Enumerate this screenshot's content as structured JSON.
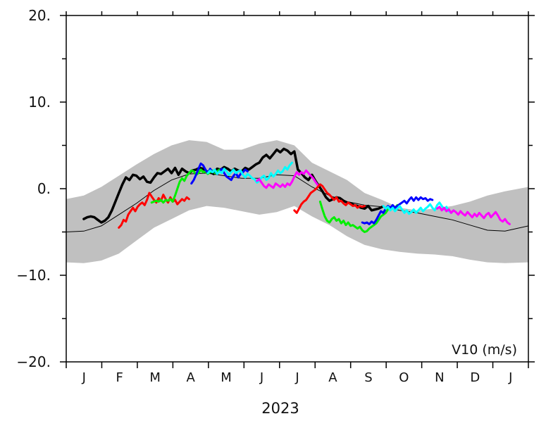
{
  "chart_data": {
    "type": "line",
    "year_label": "2023",
    "variable_label": "V10 (m/s)",
    "ylim": [
      -20,
      20
    ],
    "y_ticks": [
      {
        "value": 20,
        "label": "20."
      },
      {
        "value": 10,
        "label": "10."
      },
      {
        "value": 0,
        "label": "0."
      },
      {
        "value": -10,
        "label": "−10."
      },
      {
        "value": -20,
        "label": "−20."
      }
    ],
    "x_range_days": [
      0,
      395
    ],
    "month_labels": [
      "J",
      "F",
      "M",
      "A",
      "M",
      "J",
      "J",
      "A",
      "S",
      "O",
      "N",
      "D",
      "J"
    ],
    "climatology_band": {
      "color": "#c0c0c0",
      "days": [
        0,
        15,
        30,
        45,
        60,
        75,
        90,
        105,
        120,
        135,
        150,
        165,
        180,
        195,
        210,
        225,
        240,
        255,
        270,
        285,
        300,
        315,
        330,
        345,
        360,
        375,
        395
      ],
      "upper": [
        -1.2,
        -0.8,
        0.2,
        1.5,
        2.8,
        4.0,
        5.0,
        5.6,
        5.4,
        4.5,
        4.5,
        5.2,
        5.6,
        5.0,
        3.0,
        2.0,
        1.0,
        -0.5,
        -1.3,
        -2.2,
        -2.5,
        -2.3,
        -2.0,
        -1.5,
        -0.8,
        -0.3,
        0.2
      ],
      "lower": [
        -8.5,
        -8.6,
        -8.3,
        -7.5,
        -6.0,
        -4.5,
        -3.5,
        -2.5,
        -2.0,
        -2.2,
        -2.6,
        -3.0,
        -2.7,
        -2.0,
        -3.2,
        -4.2,
        -5.5,
        -6.5,
        -7.0,
        -7.3,
        -7.5,
        -7.6,
        -7.8,
        -8.2,
        -8.5,
        -8.6,
        -8.5
      ]
    },
    "climatology_mean": {
      "name": "mean",
      "color": "#000000",
      "days": [
        0,
        15,
        30,
        45,
        60,
        75,
        90,
        105,
        120,
        135,
        150,
        165,
        180,
        195,
        210,
        225,
        240,
        255,
        270,
        285,
        300,
        315,
        330,
        345,
        360,
        375,
        395
      ],
      "values": [
        -5.0,
        -4.9,
        -4.3,
        -3.0,
        -1.7,
        -0.2,
        1.0,
        1.7,
        1.8,
        1.5,
        1.2,
        1.2,
        1.6,
        1.5,
        0.2,
        -0.8,
        -1.5,
        -1.9,
        -2.1,
        -2.5,
        -2.8,
        -3.2,
        -3.6,
        -4.2,
        -4.8,
        -4.9,
        -4.3
      ]
    },
    "series": [
      {
        "name": "black",
        "color": "#000000",
        "days": [
          15,
          18,
          21,
          24,
          27,
          30,
          33,
          36,
          39,
          42,
          45,
          48,
          51,
          54,
          57,
          60,
          63,
          66,
          69,
          72,
          75,
          78,
          81,
          84,
          87,
          90,
          93,
          96,
          99,
          102,
          105,
          108,
          111,
          114,
          117,
          120,
          123,
          126,
          129,
          132,
          135,
          138,
          141,
          144,
          147,
          150,
          153,
          156,
          159,
          162,
          165,
          168,
          171,
          174,
          177,
          180,
          183,
          186,
          189,
          192,
          195,
          198,
          201,
          204,
          207,
          210,
          213,
          216,
          219,
          222,
          225,
          228,
          231,
          234,
          237,
          240,
          243,
          246,
          249,
          252,
          255,
          258,
          261,
          264,
          267,
          270
        ],
        "values": [
          -3.5,
          -3.3,
          -3.2,
          -3.3,
          -3.6,
          -3.9,
          -3.7,
          -3.3,
          -2.5,
          -1.5,
          -0.5,
          0.5,
          1.3,
          1.0,
          1.6,
          1.5,
          1.1,
          1.4,
          0.8,
          0.7,
          1.3,
          1.8,
          1.7,
          2.0,
          2.3,
          1.8,
          2.4,
          1.6,
          2.3,
          2.0,
          1.8,
          2.1,
          2.2,
          2.4,
          2.3,
          2.0,
          1.9,
          1.7,
          2.3,
          2.2,
          2.5,
          2.3,
          2.0,
          2.3,
          2.1,
          2.0,
          2.4,
          2.2,
          2.5,
          2.8,
          3.0,
          3.6,
          3.9,
          3.5,
          4.0,
          4.5,
          4.2,
          4.6,
          4.4,
          4.0,
          4.3,
          2.2,
          1.8,
          1.3,
          1.0,
          1.6,
          0.9,
          0.3,
          -0.3,
          -1.0,
          -1.4,
          -1.2,
          -1.0,
          -1.1,
          -1.4,
          -1.6,
          -1.7,
          -1.9,
          -2.0,
          -2.2,
          -2.3,
          -2.0,
          -2.5,
          -2.4,
          -2.3,
          -2.1
        ]
      },
      {
        "name": "red1",
        "color": "#ff0000",
        "days": [
          45,
          47,
          49,
          51,
          53,
          55,
          57,
          59,
          61,
          63,
          65,
          67,
          69,
          71,
          73,
          75,
          77,
          79,
          81,
          83,
          85,
          87,
          89,
          91,
          93,
          95,
          97,
          99,
          101,
          103,
          105
        ],
        "values": [
          -4.5,
          -4.2,
          -3.6,
          -3.8,
          -3.0,
          -2.6,
          -2.2,
          -2.6,
          -2.1,
          -1.8,
          -1.6,
          -1.9,
          -1.3,
          -0.5,
          -0.9,
          -1.3,
          -1.6,
          -1.1,
          -1.4,
          -0.7,
          -1.2,
          -1.6,
          -1.0,
          -1.5,
          -1.3,
          -1.8,
          -1.5,
          -1.2,
          -1.4,
          -1.0,
          -1.2
        ]
      },
      {
        "name": "green1",
        "color": "#00ee00",
        "days": [
          73,
          75,
          77,
          79,
          81,
          83,
          85,
          87,
          89,
          91,
          93,
          95,
          97,
          99,
          101,
          103,
          105,
          107,
          109,
          111,
          113,
          115,
          117,
          119,
          121,
          123,
          125,
          127,
          129,
          131
        ],
        "values": [
          -1.6,
          -1.5,
          -1.4,
          -1.5,
          -1.3,
          -1.6,
          -1.3,
          -1.4,
          -1.2,
          -1.5,
          -0.8,
          0.0,
          0.8,
          1.2,
          0.9,
          1.5,
          1.8,
          2.1,
          2.0,
          1.6,
          1.8,
          2.2,
          1.9,
          2.0,
          1.7,
          1.9,
          2.1,
          1.8,
          2.0,
          2.2
        ]
      },
      {
        "name": "blue1",
        "color": "#0000ff",
        "days": [
          107,
          109,
          111,
          113,
          115,
          117,
          119,
          121,
          123,
          125,
          127,
          129,
          131,
          133,
          135,
          137,
          139,
          141,
          143,
          145,
          147,
          149,
          151,
          153,
          155
        ],
        "values": [
          0.6,
          1.0,
          1.6,
          2.3,
          2.9,
          2.7,
          2.2,
          1.8,
          2.3,
          1.9,
          2.1,
          1.7,
          2.0,
          2.3,
          1.8,
          1.4,
          1.2,
          1.0,
          1.5,
          1.8,
          1.3,
          1.7,
          1.9,
          2.2,
          2.0
        ]
      },
      {
        "name": "cyan1",
        "color": "#00ffff",
        "days": [
          121,
          123,
          125,
          127,
          129,
          131,
          133,
          135,
          137,
          139,
          141,
          143,
          145,
          147,
          149,
          151,
          153,
          155,
          157,
          159,
          161,
          163,
          165,
          167,
          169,
          171,
          173,
          175,
          177,
          179,
          181,
          183,
          185,
          187,
          189,
          191,
          193
        ],
        "values": [
          1.8,
          2.1,
          1.9,
          2.2,
          1.7,
          2.0,
          1.8,
          2.3,
          2.0,
          1.6,
          1.9,
          2.2,
          1.8,
          2.0,
          2.1,
          1.6,
          1.3,
          1.7,
          1.5,
          1.2,
          1.1,
          0.7,
          0.9,
          1.3,
          1.5,
          1.0,
          1.2,
          1.8,
          1.4,
          1.7,
          2.1,
          1.8,
          2.0,
          2.5,
          2.2,
          2.7,
          3.0
        ]
      },
      {
        "name": "magenta1",
        "color": "#ff00ff",
        "days": [
          163,
          165,
          167,
          169,
          171,
          173,
          175,
          177,
          179,
          181,
          183,
          185,
          187,
          189,
          191,
          193,
          195,
          197,
          199,
          201,
          203,
          205,
          207,
          209,
          211,
          213,
          215
        ],
        "values": [
          0.9,
          1.1,
          0.7,
          0.3,
          0.1,
          0.5,
          0.3,
          0.1,
          0.6,
          0.4,
          0.2,
          0.5,
          0.2,
          0.6,
          0.4,
          0.8,
          1.4,
          1.9,
          1.6,
          1.9,
          1.7,
          2.1,
          1.8,
          1.5,
          1.2,
          0.8,
          0.4
        ]
      },
      {
        "name": "red2",
        "color": "#ff0000",
        "days": [
          195,
          197,
          199,
          201,
          203,
          205,
          207,
          209,
          211,
          213,
          215,
          217,
          219,
          221,
          223,
          225,
          227,
          229,
          231,
          233,
          235,
          237,
          239,
          241,
          243,
          245,
          247,
          249,
          251,
          253,
          255
        ],
        "values": [
          -2.5,
          -2.8,
          -2.3,
          -1.8,
          -1.5,
          -1.3,
          -0.9,
          -0.5,
          -0.3,
          -0.1,
          0.2,
          0.5,
          0.3,
          -0.1,
          -0.5,
          -0.7,
          -1.0,
          -1.3,
          -1.0,
          -1.5,
          -1.4,
          -1.7,
          -1.9,
          -1.6,
          -1.8,
          -2.0,
          -1.9,
          -2.2,
          -2.0,
          -2.1,
          -2.0
        ]
      },
      {
        "name": "green2",
        "color": "#00ee00",
        "days": [
          217,
          219,
          221,
          223,
          225,
          227,
          229,
          231,
          233,
          235,
          237,
          239,
          241,
          243,
          245,
          247,
          249,
          251,
          253,
          255,
          257,
          259,
          261,
          263,
          265,
          267,
          269,
          271,
          273,
          275,
          277,
          279,
          281,
          283
        ],
        "values": [
          -1.5,
          -2.4,
          -3.2,
          -3.7,
          -3.9,
          -3.5,
          -3.3,
          -3.7,
          -3.5,
          -4.0,
          -3.7,
          -4.2,
          -3.9,
          -4.3,
          -4.2,
          -4.4,
          -4.6,
          -4.4,
          -4.8,
          -5.0,
          -4.9,
          -4.6,
          -4.4,
          -4.2,
          -4.0,
          -3.6,
          -3.2,
          -3.0,
          -2.8,
          -2.4,
          -2.2,
          -2.0,
          -2.2,
          -1.9
        ]
      },
      {
        "name": "blue2",
        "color": "#0000ff",
        "days": [
          253,
          255,
          257,
          259,
          261,
          263,
          265,
          267,
          269,
          271,
          273,
          275,
          277,
          279,
          281,
          283,
          285,
          287,
          289,
          291,
          293,
          295,
          297,
          299,
          301,
          303,
          305,
          307,
          309,
          311,
          313
        ],
        "values": [
          -3.9,
          -4.0,
          -3.9,
          -4.1,
          -3.8,
          -4.0,
          -3.6,
          -3.1,
          -2.6,
          -2.8,
          -2.3,
          -2.0,
          -2.2,
          -1.9,
          -2.2,
          -2.0,
          -1.8,
          -1.6,
          -1.4,
          -1.7,
          -1.3,
          -1.0,
          -1.4,
          -1.0,
          -1.3,
          -1.0,
          -1.2,
          -1.1,
          -1.4,
          -1.2,
          -1.3
        ]
      },
      {
        "name": "cyan2",
        "color": "#00ffff",
        "days": [
          271,
          273,
          275,
          277,
          279,
          281,
          283,
          285,
          287,
          289,
          291,
          293,
          295,
          297,
          299,
          301,
          303,
          305,
          307,
          309,
          311,
          313,
          315,
          317,
          319,
          321,
          323,
          325,
          327,
          329,
          331,
          333
        ],
        "values": [
          -2.0,
          -2.3,
          -2.1,
          -2.5,
          -2.2,
          -2.6,
          -2.3,
          -2.0,
          -2.4,
          -2.8,
          -2.5,
          -2.9,
          -2.7,
          -2.4,
          -2.8,
          -2.5,
          -2.2,
          -2.6,
          -2.3,
          -2.1,
          -1.8,
          -2.2,
          -2.5,
          -1.9,
          -1.6,
          -2.0,
          -2.4,
          -2.1,
          -2.6,
          -2.8,
          -2.5,
          -2.7
        ]
      },
      {
        "name": "magenta2",
        "color": "#ff00ff",
        "days": [
          317,
          319,
          321,
          323,
          325,
          327,
          329,
          331,
          333,
          335,
          337,
          339,
          341,
          343,
          345,
          347,
          349,
          351,
          353,
          355,
          357,
          359,
          361,
          363,
          365,
          367,
          369,
          371,
          373,
          375,
          377,
          379
        ],
        "values": [
          -2.3,
          -2.1,
          -2.5,
          -2.2,
          -2.6,
          -2.4,
          -2.8,
          -2.5,
          -2.7,
          -3.0,
          -2.6,
          -2.9,
          -3.1,
          -2.7,
          -3.0,
          -3.3,
          -2.9,
          -3.2,
          -2.8,
          -3.1,
          -3.4,
          -3.0,
          -2.8,
          -3.3,
          -3.0,
          -2.7,
          -3.1,
          -3.6,
          -3.8,
          -3.5,
          -3.9,
          -4.1
        ]
      }
    ]
  }
}
